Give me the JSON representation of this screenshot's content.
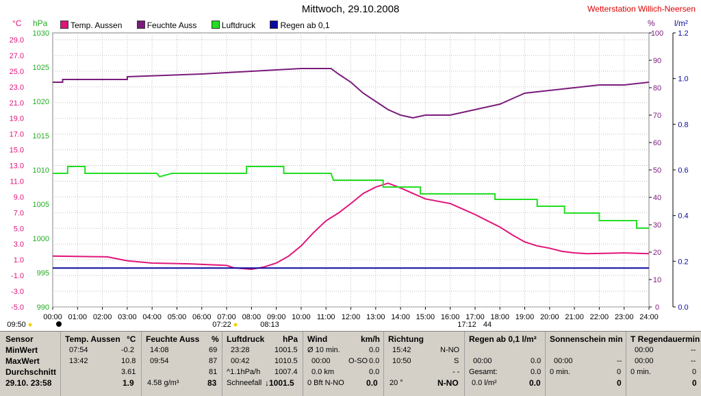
{
  "title": "Mittwoch, 29.10.2008",
  "station": "Wetterstation Willich-Neersen",
  "units": {
    "left1": "°C",
    "left2": "hPa",
    "right1": "%",
    "right2": "l/m²"
  },
  "legend": [
    {
      "label": "Temp. Aussen",
      "color": "#e0147a"
    },
    {
      "label": "Feuchte Auss",
      "color": "#7a1a7a"
    },
    {
      "label": "Luftdruck",
      "color": "#22dd22"
    },
    {
      "label": "Regen ab 0,1",
      "color": "#0a0aa0"
    }
  ],
  "colors": {
    "temp": "#e0147a",
    "humidity": "#7a1a7a",
    "pressure": "#22dd22",
    "rain": "#0a0aa0",
    "grid": "#bdbdbd",
    "hpaAxis": "#22aa22",
    "pctAxis": "#7a1a7a",
    "rainAxis": "#0a0aa0"
  },
  "chart_data": {
    "type": "line",
    "xlabel": "",
    "x_ticks": [
      "00:00",
      "01:00",
      "02:00",
      "03:00",
      "04:00",
      "05:00",
      "06:00",
      "07:00",
      "08:00",
      "09:00",
      "10:00",
      "11:00",
      "12:00",
      "13:00",
      "14:00",
      "15:00",
      "16:00",
      "17:00",
      "18:00",
      "19:00",
      "20:00",
      "21:00",
      "22:00",
      "23:00",
      "24:00"
    ],
    "temp_ticks": [
      "29.0",
      "27.0",
      "25.0",
      "23.0",
      "21.0",
      "19.0",
      "17.0",
      "15.0",
      "13.0",
      "11.0",
      "9.0",
      "7.0",
      "5.0",
      "3.0",
      "1.0",
      "-1.0",
      "-3.0",
      "-5.0"
    ],
    "hpa_ticks": [
      "1030",
      "1025",
      "1020",
      "1015",
      "1010",
      "1005",
      "1000",
      "995",
      "990"
    ],
    "pct_ticks": [
      "100",
      "90",
      "80",
      "70",
      "60",
      "50",
      "40",
      "30",
      "20",
      "10",
      "0"
    ],
    "rain_ticks": [
      "1.2",
      "1.0",
      "0.8",
      "0.6",
      "0.4",
      "0.2",
      "0.0"
    ],
    "grid": true,
    "series": [
      {
        "name": "Temp. Aussen",
        "axis": "temp",
        "ylim": [
          -5,
          30
        ],
        "points": [
          [
            0,
            1.5
          ],
          [
            2.2,
            1.4
          ],
          [
            3,
            0.9
          ],
          [
            4,
            0.6
          ],
          [
            5.5,
            0.5
          ],
          [
            7,
            0.3
          ],
          [
            7.3,
            0.0
          ],
          [
            8,
            -0.2
          ],
          [
            8.5,
            0.1
          ],
          [
            9,
            0.6
          ],
          [
            9.5,
            1.5
          ],
          [
            10,
            2.8
          ],
          [
            10.5,
            4.5
          ],
          [
            11,
            6.0
          ],
          [
            11.5,
            7.0
          ],
          [
            12,
            8.2
          ],
          [
            12.5,
            9.5
          ],
          [
            13,
            10.3
          ],
          [
            13.5,
            10.8
          ],
          [
            14,
            10.2
          ],
          [
            14.5,
            9.5
          ],
          [
            15,
            8.8
          ],
          [
            15.5,
            8.5
          ],
          [
            16,
            8.2
          ],
          [
            16.5,
            7.5
          ],
          [
            17,
            6.8
          ],
          [
            17.5,
            6.0
          ],
          [
            18,
            5.2
          ],
          [
            18.5,
            4.2
          ],
          [
            19,
            3.3
          ],
          [
            19.5,
            2.8
          ],
          [
            20,
            2.5
          ],
          [
            20.5,
            2.1
          ],
          [
            21,
            1.9
          ],
          [
            21.5,
            1.8
          ],
          [
            23,
            1.9
          ],
          [
            24,
            1.8
          ]
        ]
      },
      {
        "name": "Feuchte Auss",
        "axis": "pct",
        "ylim": [
          0,
          100
        ],
        "points": [
          [
            0,
            82
          ],
          [
            0.4,
            82
          ],
          [
            0.4,
            83
          ],
          [
            3,
            83
          ],
          [
            3,
            84
          ],
          [
            6,
            85
          ],
          [
            8,
            86
          ],
          [
            10,
            87
          ],
          [
            11.2,
            87
          ],
          [
            11.5,
            85
          ],
          [
            12,
            82
          ],
          [
            12.5,
            78
          ],
          [
            13,
            75
          ],
          [
            13.5,
            72
          ],
          [
            14,
            70
          ],
          [
            14.5,
            69
          ],
          [
            15,
            70
          ],
          [
            16,
            70
          ],
          [
            16.5,
            71
          ],
          [
            17,
            72
          ],
          [
            17.5,
            73
          ],
          [
            18,
            74
          ],
          [
            18.5,
            76
          ],
          [
            19,
            78
          ],
          [
            20,
            79
          ],
          [
            21,
            80
          ],
          [
            22,
            81
          ],
          [
            23,
            81
          ],
          [
            24,
            82
          ]
        ]
      },
      {
        "name": "Luftdruck",
        "axis": "hpa",
        "ylim": [
          990,
          1030
        ],
        "points": [
          [
            0,
            1009.5
          ],
          [
            0.6,
            1009.5
          ],
          [
            0.6,
            1010.5
          ],
          [
            1.3,
            1010.5
          ],
          [
            1.3,
            1009.5
          ],
          [
            4.2,
            1009.5
          ],
          [
            4.3,
            1009.0
          ],
          [
            4.8,
            1009.5
          ],
          [
            7.8,
            1009.5
          ],
          [
            7.8,
            1010.5
          ],
          [
            8.6,
            1010.5
          ],
          [
            8.6,
            1010.5
          ],
          [
            9.3,
            1010.5
          ],
          [
            9.3,
            1009.5
          ],
          [
            11.2,
            1009.5
          ],
          [
            11.3,
            1008.5
          ],
          [
            13.3,
            1008.5
          ],
          [
            13.3,
            1007.5
          ],
          [
            14.8,
            1007.5
          ],
          [
            14.8,
            1006.5
          ],
          [
            17.8,
            1006.5
          ],
          [
            17.8,
            1005.7
          ],
          [
            19.5,
            1005.7
          ],
          [
            19.5,
            1004.7
          ],
          [
            20.6,
            1004.7
          ],
          [
            20.6,
            1003.7
          ],
          [
            22,
            1003.7
          ],
          [
            22,
            1002.6
          ],
          [
            23.5,
            1002.6
          ],
          [
            23.5,
            1001.5
          ],
          [
            24,
            1001.5
          ]
        ]
      },
      {
        "name": "Regen ab 0,1",
        "axis": "rain",
        "ylim": [
          0,
          1.2
        ],
        "points": [
          [
            0,
            0.17
          ],
          [
            24,
            0.17
          ]
        ]
      }
    ]
  },
  "markers": {
    "sunrise_time": "07:22",
    "sunset_time": "17:12",
    "sunset_extra": "44",
    "left_time": "09:50",
    "mid_time": "08:13"
  },
  "table": {
    "sensor": {
      "header": "Sensor",
      "rows": [
        "MinWert",
        "MaxWert",
        "Durchschnitt",
        "29.10. 23:58"
      ]
    },
    "temp": {
      "header": "Temp. Aussen",
      "unit": "°C",
      "min_time": "07:54",
      "min_val": "-0.2",
      "max_time": "13:42",
      "max_val": "10.8",
      "avg": "3.61",
      "cur": "1.9"
    },
    "humidity": {
      "header": "Feuchte Auss",
      "unit": "%",
      "min_time": "14:08",
      "min_val": "69",
      "max_time": "09:54",
      "max_val": "87",
      "avg": "81",
      "abs": "4.58 g/m³",
      "cur": "83"
    },
    "pressure": {
      "header": "Luftdruck",
      "unit": "hPa",
      "min_time": "23:28",
      "min_val": "1001.5",
      "max_time": "00:42",
      "max_val": "1010.5",
      "trend": "^1.1hPa/h",
      "avg": "1007.4",
      "forecast": "Schneefall",
      "cur": "↓1001.5"
    },
    "wind": {
      "header": "Wind",
      "unit": "km/h",
      "r1_l": "Ø 10 min.",
      "r1_v": "0.0",
      "r2_l": "00:00",
      "r2_m": "O-SO",
      "r2_v": "0.0",
      "r3_l": "0.0 km",
      "r3_v": "0.0",
      "r4_l": "0 Bft N-NO",
      "r4_v": "0.0"
    },
    "direction": {
      "header": "Richtung",
      "r1_l": "15:42",
      "r1_v": "N-NO",
      "r2_l": "10:50",
      "r2_v": "S",
      "r3_v": "- -",
      "r4_l": "20 °",
      "r4_v": "N-NO"
    },
    "rain": {
      "header": "Regen ab 0,1 l/m²",
      "r2_l": "00:00",
      "r2_v": "0.0",
      "r3_l": "Gesamt:",
      "r3_v": "0.0",
      "r4_l": "0.0 l/m²",
      "r4_v": "0.0"
    },
    "sun": {
      "header": "Sonnenschein min",
      "r2_l": "00:00",
      "r2_v": "--",
      "r3_l": "0 min.",
      "r3_v": "0",
      "r4_v": "0"
    },
    "regen_dauer": {
      "header": "T Regendauermin",
      "r1_l": "00:00",
      "r1_v": "--",
      "r2_l": "00:00",
      "r2_v": "--",
      "r3_l": "0 min.",
      "r3_v": "0",
      "r4_v": "0"
    }
  }
}
